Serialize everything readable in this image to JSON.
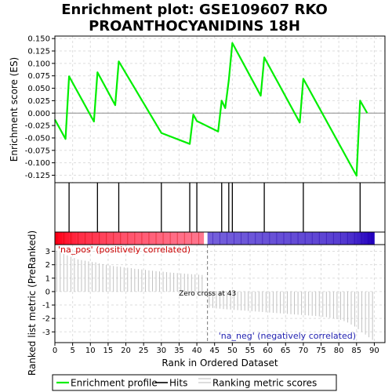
{
  "chart_data": {
    "type": "line",
    "title_line1": "Enrichment plot: GSE109607 RKO",
    "title_line2": "PROANTHOCYANIDINS 18H",
    "es_panel": {
      "ylabel": "Enrichment score (ES)",
      "ylim": [
        -0.14,
        0.155
      ],
      "yticks": [
        "0.150",
        "0.125",
        "0.100",
        "0.075",
        "0.050",
        "0.025",
        "0.000",
        "-0.025",
        "-0.050",
        "-0.075",
        "-0.100",
        "-0.125"
      ],
      "ytick_values": [
        0.15,
        0.125,
        0.1,
        0.075,
        0.05,
        0.025,
        0.0,
        -0.025,
        -0.05,
        -0.075,
        -0.1,
        -0.125
      ],
      "grid": true,
      "series_color": "#00ee00",
      "x": [
        0,
        3,
        4,
        11,
        12,
        17,
        18,
        30,
        38,
        39,
        40,
        46,
        47,
        48,
        49,
        50,
        58,
        59,
        69,
        70,
        85,
        86,
        88
      ],
      "y": [
        -0.013,
        -0.052,
        0.074,
        -0.017,
        0.082,
        0.016,
        0.104,
        -0.04,
        -0.062,
        -0.003,
        -0.016,
        -0.037,
        0.025,
        0.01,
        0.066,
        0.141,
        0.035,
        0.112,
        -0.019,
        0.069,
        -0.126,
        0.025,
        0.0
      ]
    },
    "hits": {
      "positions": [
        4,
        12,
        18,
        30,
        38,
        40,
        47,
        49,
        50,
        59,
        70,
        86
      ]
    },
    "ranking_panel": {
      "ylabel": "Ranked list metric (PreRanked)",
      "ylim": [
        -3.8,
        3.5
      ],
      "yticks": [
        "3",
        "2",
        "1",
        "0",
        "-1",
        "-2",
        "-3"
      ],
      "ytick_values": [
        3,
        2,
        1,
        0,
        -1,
        -2,
        -3
      ],
      "values": [
        3.05,
        2.95,
        2.8,
        2.7,
        2.6,
        2.5,
        2.4,
        2.35,
        2.3,
        2.25,
        2.2,
        2.18,
        2.1,
        2.05,
        2.0,
        1.95,
        1.9,
        1.87,
        1.85,
        1.8,
        1.78,
        1.75,
        1.7,
        1.68,
        1.65,
        1.62,
        1.58,
        1.55,
        1.52,
        1.5,
        1.48,
        1.45,
        1.42,
        1.4,
        1.38,
        1.36,
        1.34,
        1.32,
        1.3,
        1.28,
        1.26,
        1.24,
        0,
        -1.2,
        -1.22,
        -1.25,
        -1.27,
        -1.3,
        -1.32,
        -1.34,
        -1.36,
        -1.38,
        -1.4,
        -1.42,
        -1.44,
        -1.46,
        -1.48,
        -1.5,
        -1.52,
        -1.54,
        -1.56,
        -1.58,
        -1.6,
        -1.62,
        -1.64,
        -1.66,
        -1.68,
        -1.7,
        -1.72,
        -1.74,
        -1.76,
        -1.78,
        -1.8,
        -1.82,
        -1.85,
        -1.88,
        -1.9,
        -1.95,
        -2.0,
        -2.05,
        -2.1,
        -2.2,
        -2.3,
        -2.45,
        -2.6,
        -2.8,
        -3.0,
        -3.2,
        -3.4,
        -3.6
      ],
      "zero_cross_label": "Zero cross at 43",
      "zero_cross_x": 43,
      "pos_label": "'na_pos' (positively correlated)",
      "neg_label": "'na_neg' (negatively correlated)"
    },
    "xaxis": {
      "xlabel": "Rank in Ordered Dataset",
      "xlim": [
        0,
        93
      ],
      "xticks": [
        "0",
        "5",
        "10",
        "15",
        "20",
        "25",
        "30",
        "35",
        "40",
        "45",
        "50",
        "55",
        "60",
        "65",
        "70",
        "75",
        "80",
        "85",
        "90"
      ],
      "xtick_values": [
        0,
        5,
        10,
        15,
        20,
        25,
        30,
        35,
        40,
        45,
        50,
        55,
        60,
        65,
        70,
        75,
        80,
        85,
        90
      ]
    },
    "legend": {
      "placement": "bottom",
      "items": [
        {
          "label": "Enrichment profile",
          "color": "#00ee00"
        },
        {
          "label": "Hits",
          "color": "#000000"
        },
        {
          "label": "Ranking metric scores",
          "color": "#bbbbbb"
        }
      ]
    }
  }
}
